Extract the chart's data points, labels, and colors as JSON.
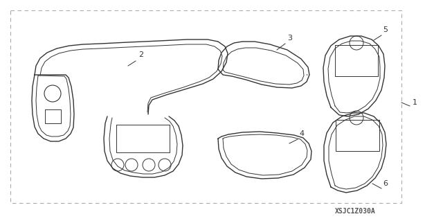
{
  "bg_color": "#ffffff",
  "line_color": "#333333",
  "part_code": "XSJC1Z030A",
  "fig_width": 6.4,
  "fig_height": 3.19,
  "dpi": 100
}
